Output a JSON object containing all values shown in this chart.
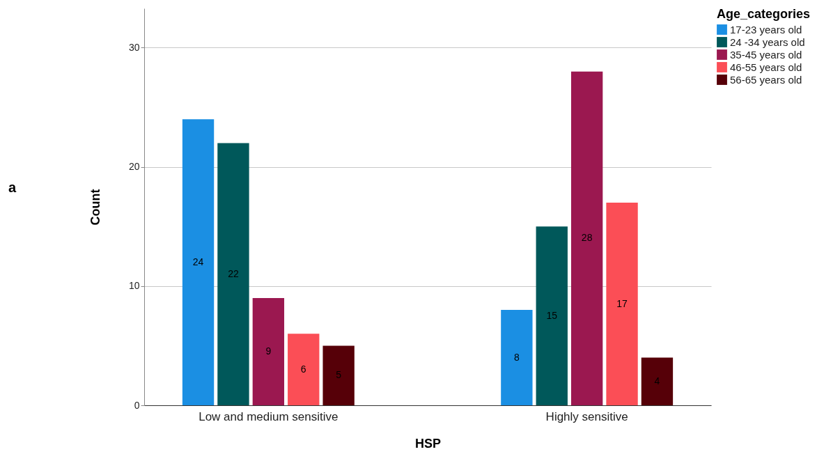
{
  "chart_data": {
    "type": "bar",
    "xlabel": "HSP",
    "ylabel": "Count",
    "legend_title": "Age_categories",
    "annotations": [
      "a"
    ],
    "categories": [
      "Low and medium sensitive",
      "Highly sensitive"
    ],
    "series": [
      {
        "name": "17-23 years old",
        "color": "#1b8fe3",
        "values": [
          24,
          8
        ]
      },
      {
        "name": "24 -34 years old",
        "color": "#00585a",
        "values": [
          22,
          15
        ]
      },
      {
        "name": "35-45 years old",
        "color": "#9b1850",
        "values": [
          9,
          28
        ]
      },
      {
        "name": "46-55 years old",
        "color": "#fb4e56",
        "values": [
          6,
          17
        ]
      },
      {
        "name": "56-65 years old",
        "color": "#560008",
        "values": [
          5,
          4
        ]
      }
    ],
    "ylim": [
      0,
      33.3
    ],
    "yticks": [
      0,
      10,
      20,
      30
    ],
    "grid": "y",
    "data_labels": true,
    "legend": "top right"
  }
}
